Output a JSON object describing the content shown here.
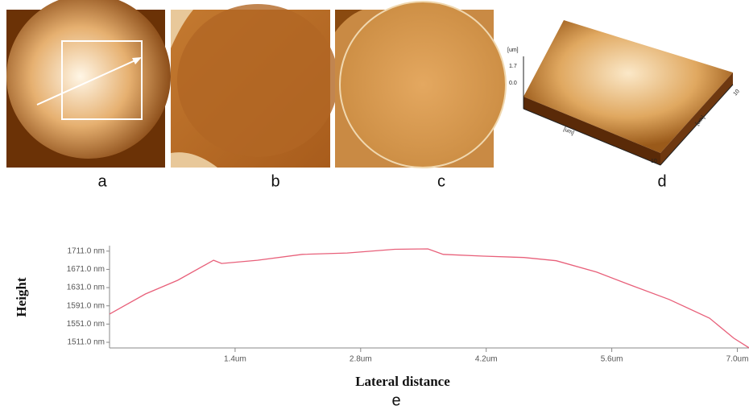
{
  "panel_labels": [
    "a",
    "b",
    "c",
    "d"
  ],
  "panel_d_labels": [
    "[um]",
    "1.7",
    "0.0",
    "[um]",
    "[um]",
    "10",
    "10"
  ],
  "chart_data": {
    "type": "line",
    "caption": "e",
    "x_label": "Lateral distance",
    "y_label": "Height",
    "x": [
      0,
      0.4,
      0.76,
      1.16,
      1.25,
      1.65,
      2.15,
      2.65,
      3.18,
      3.55,
      3.72,
      4.17,
      4.62,
      4.98,
      5.43,
      5.79,
      6.24,
      6.69,
      6.96,
      7.13
    ],
    "values": [
      1573,
      1617,
      1647,
      1691,
      1684,
      1691,
      1704,
      1707,
      1715,
      1716,
      1704,
      1700,
      1697,
      1690,
      1665,
      1638,
      1605,
      1564,
      1520,
      1499
    ],
    "color": "#e8607a",
    "xlim": [
      0,
      7.13
    ],
    "ylim": [
      1498.6,
      1723
    ],
    "xticks": [
      {
        "value": 1.4,
        "label": "1.4um"
      },
      {
        "value": 2.8,
        "label": "2.8um"
      },
      {
        "value": 4.2,
        "label": "4.2um"
      },
      {
        "value": 5.6,
        "label": "5.6um"
      },
      {
        "value": 7.0,
        "label": "7.0um"
      }
    ],
    "yticks": [
      {
        "value": 1511,
        "label": "1511.0 nm"
      },
      {
        "value": 1551,
        "label": "1551.0 nm"
      },
      {
        "value": 1591,
        "label": "1591.0 nm"
      },
      {
        "value": 1631,
        "label": "1631.0 nm"
      },
      {
        "value": 1671,
        "label": "1671.0 nm"
      },
      {
        "value": 1711,
        "label": "1711.0 nm"
      }
    ]
  }
}
